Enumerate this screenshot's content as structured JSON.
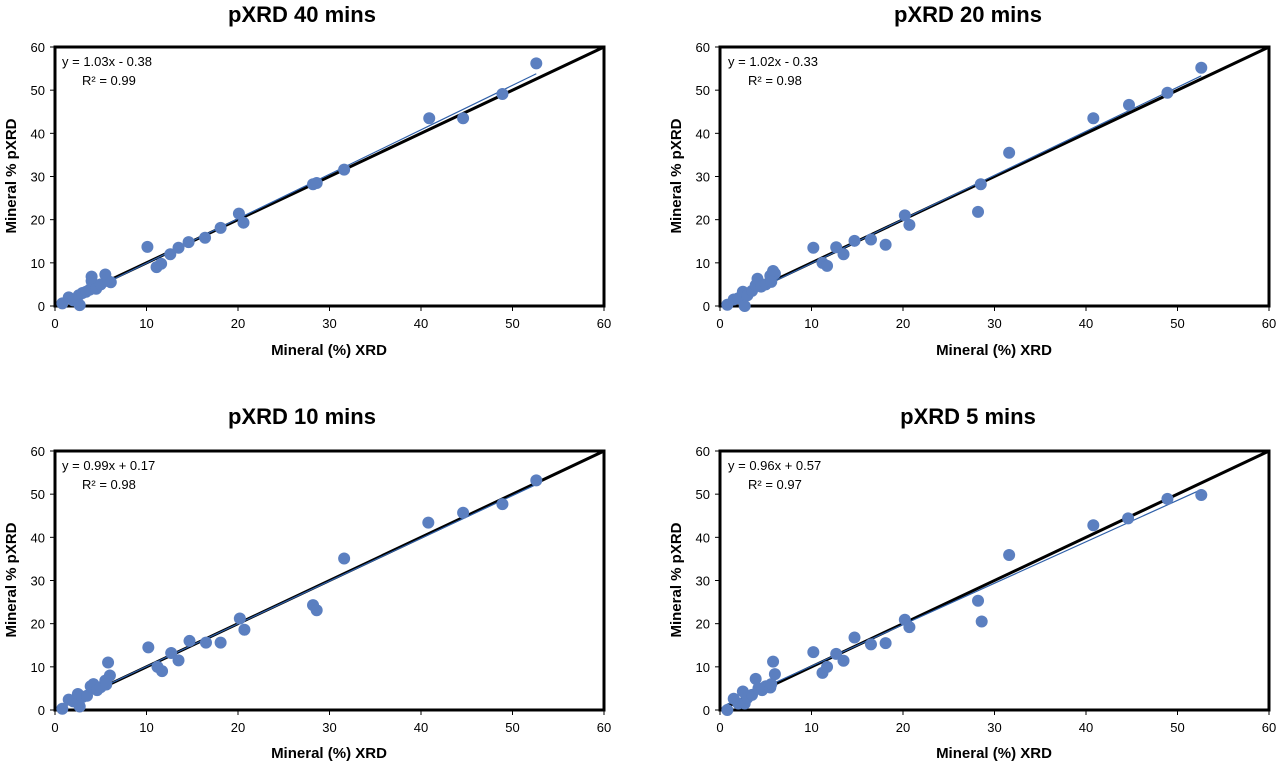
{
  "colors": {
    "point": "#5b7fc0",
    "line": "#000000",
    "trend": "#2e5fa8",
    "frame": "#000000"
  },
  "chart_data": [
    {
      "type": "scatter",
      "title": "pXRD 40 mins",
      "xlabel": "Mineral (%) XRD",
      "ylabel": "Mineral % pXRD",
      "xlim": [
        0,
        60
      ],
      "ylim": [
        0,
        60
      ],
      "xticks": [
        "0",
        "10",
        "20",
        "30",
        "40",
        "50",
        "60"
      ],
      "yticks": [
        "0",
        "10",
        "20",
        "30",
        "40",
        "50",
        "60"
      ],
      "equation": "y = 1.03x - 0.38",
      "r2": "R² = 0.99",
      "fit": {
        "slope": 1.03,
        "intercept": -0.38
      },
      "points": [
        [
          0.8,
          0.6
        ],
        [
          1.5,
          2.0
        ],
        [
          2.0,
          1.3
        ],
        [
          2.6,
          2.5
        ],
        [
          2.7,
          0.2
        ],
        [
          3.0,
          3.0
        ],
        [
          3.4,
          3.3
        ],
        [
          3.8,
          3.8
        ],
        [
          4.0,
          6.8
        ],
        [
          4.0,
          5.8
        ],
        [
          4.5,
          4.0
        ],
        [
          5.0,
          5.0
        ],
        [
          5.5,
          7.3
        ],
        [
          5.8,
          5.8
        ],
        [
          6.1,
          5.5
        ],
        [
          10.1,
          13.7
        ],
        [
          11.1,
          9.0
        ],
        [
          11.6,
          9.8
        ],
        [
          12.6,
          12.0
        ],
        [
          13.5,
          13.5
        ],
        [
          14.6,
          14.8
        ],
        [
          16.4,
          15.8
        ],
        [
          18.1,
          18.1
        ],
        [
          20.1,
          21.4
        ],
        [
          20.6,
          19.3
        ],
        [
          28.2,
          28.2
        ],
        [
          28.6,
          28.5
        ],
        [
          31.6,
          31.6
        ],
        [
          40.9,
          43.5
        ],
        [
          44.6,
          43.5
        ],
        [
          48.9,
          49.1
        ],
        [
          52.6,
          56.2
        ]
      ]
    },
    {
      "type": "scatter",
      "title": "pXRD 20 mins",
      "xlabel": "Mineral (%) XRD",
      "ylabel": "Mineral % pXRD",
      "xlim": [
        0,
        60
      ],
      "ylim": [
        0,
        60
      ],
      "xticks": [
        "0",
        "10",
        "20",
        "30",
        "40",
        "50",
        "60"
      ],
      "yticks": [
        "0",
        "10",
        "20",
        "30",
        "40",
        "50",
        "60"
      ],
      "equation": "y = 1.02x - 0.33",
      "r2": "R² = 0.98",
      "fit": {
        "slope": 1.02,
        "intercept": -0.33
      },
      "points": [
        [
          0.8,
          0.3
        ],
        [
          1.5,
          1.5
        ],
        [
          2.0,
          1.8
        ],
        [
          2.5,
          3.3
        ],
        [
          2.7,
          0.0
        ],
        [
          3.0,
          2.5
        ],
        [
          3.5,
          3.5
        ],
        [
          3.9,
          4.8
        ],
        [
          4.1,
          6.3
        ],
        [
          4.5,
          4.5
        ],
        [
          5.0,
          5.0
        ],
        [
          5.5,
          7.0
        ],
        [
          5.8,
          8.1
        ],
        [
          6.0,
          7.5
        ],
        [
          5.6,
          5.6
        ],
        [
          10.2,
          13.5
        ],
        [
          11.2,
          10.0
        ],
        [
          11.7,
          9.3
        ],
        [
          12.7,
          13.6
        ],
        [
          13.5,
          12.0
        ],
        [
          14.7,
          15.1
        ],
        [
          16.5,
          15.4
        ],
        [
          18.1,
          14.2
        ],
        [
          20.2,
          21.0
        ],
        [
          20.7,
          18.8
        ],
        [
          28.2,
          21.8
        ],
        [
          28.5,
          28.2
        ],
        [
          31.6,
          35.5
        ],
        [
          40.8,
          43.5
        ],
        [
          44.7,
          46.6
        ],
        [
          48.9,
          49.4
        ],
        [
          52.6,
          55.2
        ]
      ]
    },
    {
      "type": "scatter",
      "title": "pXRD 10 mins",
      "xlabel": "Mineral (%) XRD",
      "ylabel": "Mineral % pXRD",
      "xlim": [
        0,
        60
      ],
      "ylim": [
        0,
        60
      ],
      "xticks": [
        "0",
        "10",
        "20",
        "30",
        "40",
        "50",
        "60"
      ],
      "yticks": [
        "0",
        "10",
        "20",
        "30",
        "40",
        "50",
        "60"
      ],
      "equation": "y = 0.99x + 0.17",
      "r2": "R² = 0.98",
      "fit": {
        "slope": 0.99,
        "intercept": 0.17
      },
      "points": [
        [
          0.8,
          0.3
        ],
        [
          1.5,
          2.4
        ],
        [
          2.0,
          2.0
        ],
        [
          2.5,
          3.7
        ],
        [
          2.7,
          0.8
        ],
        [
          3.0,
          3.0
        ],
        [
          3.5,
          3.3
        ],
        [
          3.9,
          5.5
        ],
        [
          4.2,
          6.0
        ],
        [
          4.6,
          4.6
        ],
        [
          5.0,
          5.3
        ],
        [
          5.5,
          6.8
        ],
        [
          5.8,
          11.0
        ],
        [
          6.0,
          8.0
        ],
        [
          5.6,
          5.9
        ],
        [
          10.2,
          14.5
        ],
        [
          11.2,
          10.0
        ],
        [
          11.7,
          9.0
        ],
        [
          12.7,
          13.2
        ],
        [
          13.5,
          11.5
        ],
        [
          14.7,
          16.0
        ],
        [
          16.5,
          15.6
        ],
        [
          18.1,
          15.6
        ],
        [
          20.2,
          21.2
        ],
        [
          20.7,
          18.6
        ],
        [
          28.2,
          24.3
        ],
        [
          28.6,
          23.1
        ],
        [
          31.6,
          35.1
        ],
        [
          40.8,
          43.4
        ],
        [
          44.6,
          45.7
        ],
        [
          48.9,
          47.7
        ],
        [
          52.6,
          53.2
        ]
      ]
    },
    {
      "type": "scatter",
      "title": "pXRD 5 mins",
      "xlabel": "Mineral (%) XRD",
      "ylabel": "Mineral % pXRD",
      "xlim": [
        0,
        60
      ],
      "ylim": [
        0,
        60
      ],
      "xticks": [
        "0",
        "10",
        "20",
        "30",
        "40",
        "50",
        "60"
      ],
      "yticks": [
        "0",
        "10",
        "20",
        "30",
        "40",
        "50",
        "60"
      ],
      "equation": "y = 0.96x + 0.57",
      "r2": "R² = 0.97",
      "fit": {
        "slope": 0.96,
        "intercept": 0.57
      },
      "points": [
        [
          0.8,
          0.0
        ],
        [
          1.5,
          2.6
        ],
        [
          2.0,
          1.5
        ],
        [
          2.5,
          4.3
        ],
        [
          2.7,
          1.5
        ],
        [
          3.0,
          2.8
        ],
        [
          3.5,
          3.5
        ],
        [
          3.9,
          7.2
        ],
        [
          4.2,
          5.0
        ],
        [
          4.6,
          4.6
        ],
        [
          5.0,
          5.5
        ],
        [
          5.5,
          5.2
        ],
        [
          5.8,
          11.2
        ],
        [
          6.0,
          8.3
        ],
        [
          5.6,
          6.0
        ],
        [
          10.2,
          13.4
        ],
        [
          11.2,
          8.6
        ],
        [
          11.7,
          10.0
        ],
        [
          12.7,
          13.0
        ],
        [
          13.5,
          11.4
        ],
        [
          14.7,
          16.8
        ],
        [
          16.5,
          15.2
        ],
        [
          18.1,
          15.5
        ],
        [
          20.2,
          20.9
        ],
        [
          20.7,
          19.2
        ],
        [
          28.2,
          25.3
        ],
        [
          28.6,
          20.5
        ],
        [
          31.6,
          35.9
        ],
        [
          40.8,
          42.8
        ],
        [
          44.6,
          44.4
        ],
        [
          48.9,
          48.9
        ],
        [
          52.6,
          49.8
        ]
      ]
    }
  ]
}
